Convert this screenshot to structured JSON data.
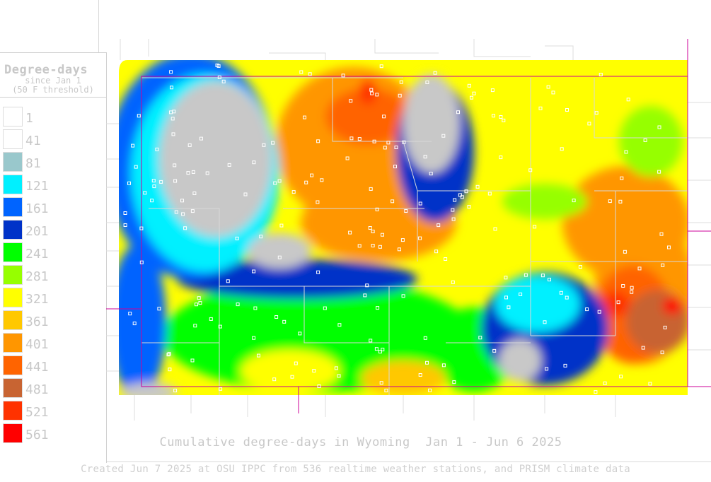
{
  "legend": {
    "title": "Degree-days",
    "subtitle_1": "since Jan 1",
    "subtitle_2": "(50 F threshold)",
    "items": [
      {
        "label": "1",
        "color": "#ffffff"
      },
      {
        "label": "41",
        "color": "#ffffff"
      },
      {
        "label": "81",
        "color": "#99c8cc"
      },
      {
        "label": "121",
        "color": "#00f0ff"
      },
      {
        "label": "161",
        "color": "#0064ff"
      },
      {
        "label": "201",
        "color": "#0032c8"
      },
      {
        "label": "241",
        "color": "#00ff00"
      },
      {
        "label": "281",
        "color": "#96ff00"
      },
      {
        "label": "321",
        "color": "#ffff00"
      },
      {
        "label": "361",
        "color": "#ffc800"
      },
      {
        "label": "401",
        "color": "#ff9600"
      },
      {
        "label": "441",
        "color": "#ff6400"
      },
      {
        "label": "481",
        "color": "#c86432"
      },
      {
        "label": "521",
        "color": "#ff3200"
      },
      {
        "label": "561",
        "color": "#ff0000"
      }
    ]
  },
  "map": {
    "title": "Cumulative degree-days in Wyoming  Jan 1 - Jun 6 2025",
    "boundary_color": "#cc0099",
    "county_line_color": "#d8d8d8",
    "station_marker_color": "#ffffff"
  },
  "credit": "Created Jun 7 2025 at OSU IPPC from 536 realtime weather stations, and PRISM climate data"
}
